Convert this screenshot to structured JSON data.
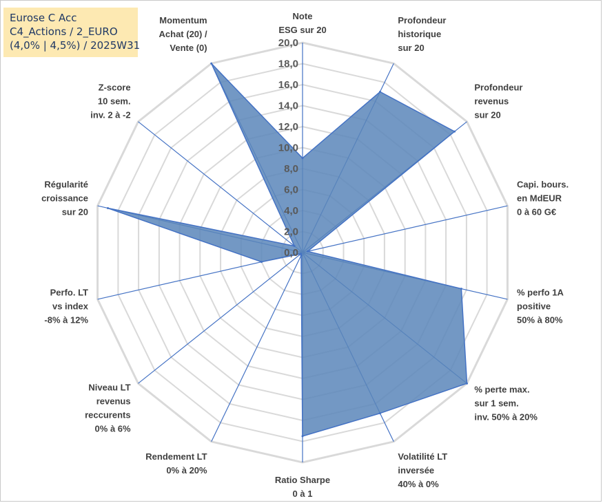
{
  "info_box": {
    "line1": "Eurose C Acc",
    "line2": "C4_Actions / 2_EURO",
    "line3": "(4,0% | 4,5%) / 2025W31"
  },
  "colors": {
    "fill": "#5b86ba",
    "stroke": "#4472c4",
    "grid": "#d9d9d9",
    "info_bg": "#fde9b2"
  },
  "chart_data": {
    "type": "radar",
    "title": "",
    "rmin": 0,
    "rmax": 20,
    "ticks": [
      "0,0",
      "2,0",
      "4,0",
      "6,0",
      "8,0",
      "10,0",
      "12,0",
      "14,0",
      "16,0",
      "18,0",
      "20,0"
    ],
    "grid": true,
    "axes": [
      [
        "Note",
        "ESG sur 20"
      ],
      [
        "Profondeur",
        "historique",
        "sur 20"
      ],
      [
        "Profondeur",
        "revenus",
        "sur 20"
      ],
      [
        "Capi. bours.",
        "en MdEUR",
        "0 à 60 G€"
      ],
      [
        "% perfo 1A",
        "positive",
        "50% à 80%"
      ],
      [
        "% perte max.",
        "sur 1 sem.",
        "inv. 50% à 20%"
      ],
      [
        "Volatilité LT",
        "inversée",
        "40% à 0%"
      ],
      [
        "Ratio Sharpe",
        "0 à 1"
      ],
      [
        "Rendement LT",
        "0% à 20%"
      ],
      [
        "Niveau LT",
        "revenus",
        "reccurents",
        "0% à 6%"
      ],
      [
        "Perfo. LT",
        "vs index",
        "-8% à 12%"
      ],
      [
        "Régularité",
        "croissance",
        "sur 20"
      ],
      [
        "Z-score",
        "10 sem.",
        "inv. 2 à -2"
      ],
      [
        "Momentum",
        "Achat (20) /",
        "Vente (0)"
      ]
    ],
    "series": [
      {
        "values": [
          9,
          17,
          18.5,
          0.5,
          15.5,
          20,
          17,
          17.5,
          0.3,
          0.2,
          4,
          19,
          1,
          20
        ]
      }
    ]
  }
}
